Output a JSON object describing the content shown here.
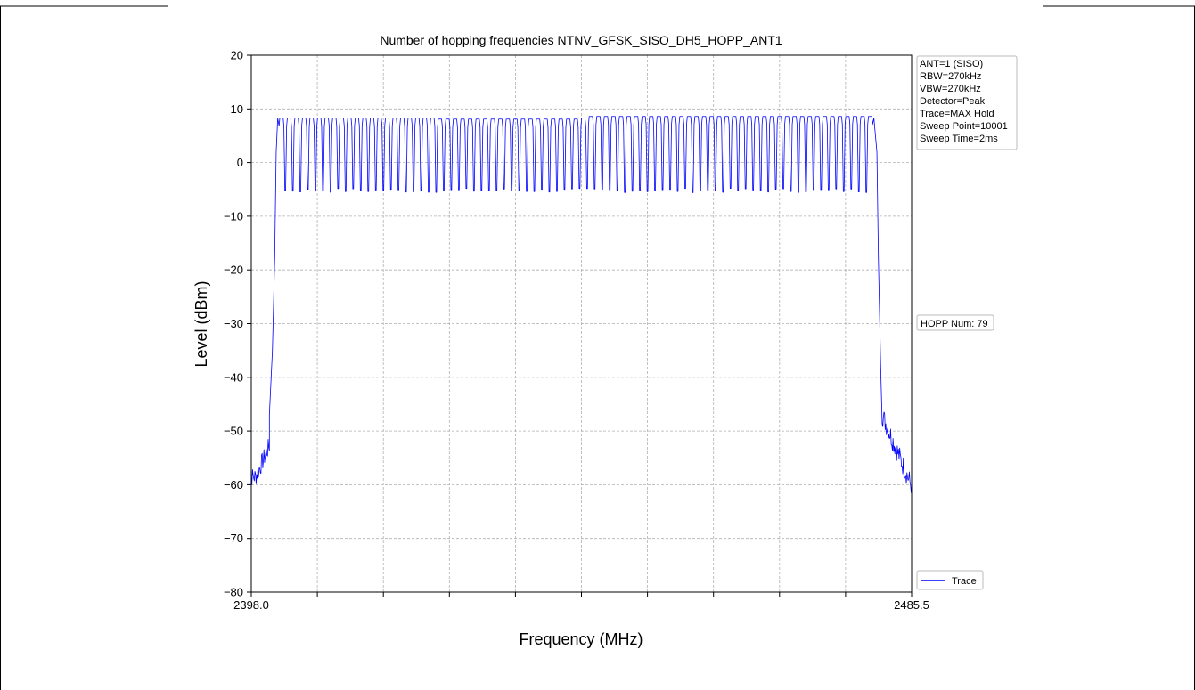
{
  "chart_data": {
    "type": "line",
    "title": "Number of hopping frequencies NTNV_GFSK_SISO_DH5_HOPP_ANT1",
    "xlabel": "Frequency (MHz)",
    "ylabel": "Level (dBm)",
    "xlim": [
      2398.0,
      2485.5
    ],
    "ylim": [
      -80,
      20
    ],
    "x_tick_labels": [
      "2398.0",
      "2485.5"
    ],
    "x_minor_tick_count": 9,
    "y_ticks": [
      20,
      10,
      0,
      -10,
      -20,
      -30,
      -40,
      -50,
      -60,
      -70,
      -80
    ],
    "y_tick_labels": [
      "20",
      "10",
      "0",
      "−10",
      "−20",
      "−30",
      "−40",
      "−50",
      "−60",
      "−70",
      "−80"
    ],
    "grid": true,
    "legend": {
      "placement": "bottom-right-outside",
      "entries": [
        "Trace"
      ]
    },
    "info_box": [
      "ANT=1 (SISO)",
      "RBW=270kHz",
      "VBW=270kHz",
      "Detector=Peak",
      "Trace=MAX Hold",
      "Sweep Point=10001",
      "Sweep Time=2ms"
    ],
    "annotation": "HOPP Num: 79",
    "series": [
      {
        "name": "Trace",
        "color": "#0000ff",
        "hopping_channels": 79,
        "first_channel_mhz": 2402,
        "channel_spacing_mhz": 1,
        "peak_level_dbm": 8.3,
        "valley_level_dbm": -5.2,
        "band_edge_start_mhz": 2401.2,
        "band_edge_end_mhz": 2480.8,
        "noise_floor_dbm": -59,
        "edge_points": [
          [
            2398.0,
            -58.5
          ],
          [
            2398.6,
            -58
          ],
          [
            2399.3,
            -56.5
          ],
          [
            2400.0,
            -53
          ],
          [
            2400.4,
            -47
          ],
          [
            2400.8,
            -35
          ],
          [
            2401.1,
            -18
          ],
          [
            2401.3,
            2
          ],
          [
            2401.5,
            8.3
          ]
        ],
        "far_edge_points": [
          [
            2480.5,
            8.3
          ],
          [
            2480.9,
            2
          ],
          [
            2481.1,
            -18
          ],
          [
            2481.4,
            -38
          ],
          [
            2481.8,
            -47
          ],
          [
            2482.3,
            -52
          ],
          [
            2483.2,
            -56
          ],
          [
            2484.3,
            -58
          ],
          [
            2485.5,
            -60
          ]
        ]
      }
    ]
  }
}
